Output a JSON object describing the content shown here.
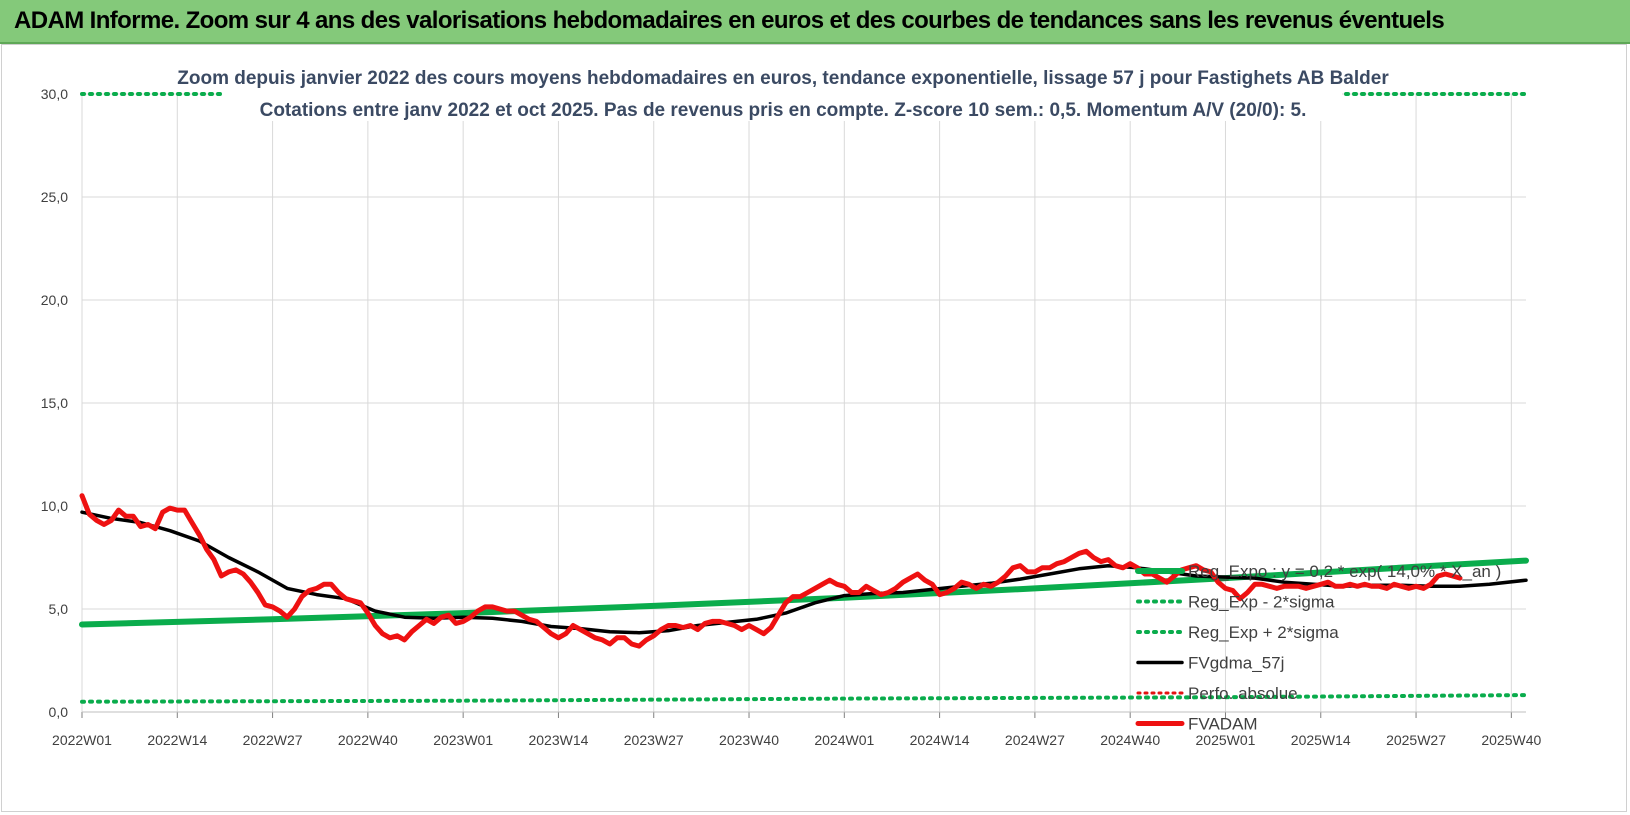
{
  "banner": {
    "title": "ADAM Informe. Zoom sur 4 ans des valorisations hebdomadaires en euros et des courbes de tendances sans les revenus éventuels"
  },
  "colors": {
    "reg_expo": "#0aac4c",
    "fvgdma": "#000000",
    "perfo": "#e31212",
    "fvadam": "#ee1111",
    "grid": "#d9d9d9",
    "title": "#3b4a63",
    "banner": "#84c97a"
  },
  "chart_data": {
    "type": "line",
    "title": "Zoom depuis janvier 2022 des cours moyens hebdomadaires en euros, tendance exponentielle, lissage 57 j pour Fastighets AB Balder",
    "subtitle": "Cotations entre janv 2022 et oct 2025. Pas de revenus pris en compte. Z-score 10 sem.: 0,5. Momentum A/V (20/0): 5.",
    "xlabel": "",
    "ylabel": "",
    "ylim": [
      0,
      30
    ],
    "y_ticks": [
      "0,0",
      "5,0",
      "10,0",
      "15,0",
      "20,0",
      "25,0",
      "30,0"
    ],
    "x_ticks": [
      "2022W01",
      "2022W14",
      "2022W27",
      "2022W40",
      "2023W01",
      "2023W14",
      "2023W27",
      "2023W40",
      "2024W01",
      "2024W14",
      "2024W27",
      "2024W40",
      "2025W01",
      "2025W14",
      "2025W27",
      "2025W40"
    ],
    "x_range_weeks": [
      0,
      197
    ],
    "grid": true,
    "legend_position": "right",
    "series": [
      {
        "name": "Reg_Expo : y = 0,2 * exp( 14,0% * X_an )",
        "style": "solid-thick",
        "points": [
          [
            0,
            4.25
          ],
          [
            26,
            4.5
          ],
          [
            52,
            4.8
          ],
          [
            78,
            5.15
          ],
          [
            104,
            5.55
          ],
          [
            130,
            6.0
          ],
          [
            156,
            6.5
          ],
          [
            182,
            7.05
          ],
          [
            197,
            7.35
          ]
        ]
      },
      {
        "name": "Reg_Exp - 2*sigma",
        "style": "dotted",
        "points": [
          [
            0,
            0.5
          ],
          [
            52,
            0.55
          ],
          [
            104,
            0.65
          ],
          [
            156,
            0.72
          ],
          [
            197,
            0.82
          ]
        ]
      },
      {
        "name": "Reg_Exp + 2*sigma",
        "style": "dotted",
        "points": [
          [
            0,
            30
          ],
          [
            197,
            30
          ]
        ]
      },
      {
        "name": "FVgdma_57j",
        "style": "solid",
        "points": [
          [
            0,
            9.7
          ],
          [
            4,
            9.4
          ],
          [
            8,
            9.2
          ],
          [
            12,
            8.8
          ],
          [
            16,
            8.3
          ],
          [
            20,
            7.5
          ],
          [
            24,
            6.8
          ],
          [
            28,
            6.0
          ],
          [
            32,
            5.7
          ],
          [
            36,
            5.5
          ],
          [
            40,
            4.9
          ],
          [
            44,
            4.6
          ],
          [
            48,
            4.55
          ],
          [
            52,
            4.6
          ],
          [
            56,
            4.55
          ],
          [
            60,
            4.4
          ],
          [
            64,
            4.15
          ],
          [
            68,
            4.05
          ],
          [
            72,
            3.9
          ],
          [
            76,
            3.85
          ],
          [
            80,
            3.95
          ],
          [
            84,
            4.2
          ],
          [
            88,
            4.35
          ],
          [
            92,
            4.5
          ],
          [
            96,
            4.8
          ],
          [
            100,
            5.3
          ],
          [
            104,
            5.65
          ],
          [
            108,
            5.75
          ],
          [
            112,
            5.8
          ],
          [
            116,
            5.95
          ],
          [
            120,
            6.1
          ],
          [
            124,
            6.25
          ],
          [
            128,
            6.45
          ],
          [
            132,
            6.7
          ],
          [
            136,
            6.95
          ],
          [
            140,
            7.1
          ],
          [
            144,
            7.0
          ],
          [
            148,
            6.8
          ],
          [
            152,
            6.6
          ],
          [
            156,
            6.55
          ],
          [
            160,
            6.5
          ],
          [
            164,
            6.3
          ],
          [
            168,
            6.2
          ],
          [
            172,
            6.1
          ],
          [
            176,
            6.15
          ],
          [
            180,
            6.15
          ],
          [
            184,
            6.1
          ],
          [
            188,
            6.1
          ],
          [
            192,
            6.2
          ],
          [
            197,
            6.4
          ]
        ]
      },
      {
        "name": "Perfo. absolue",
        "style": "dotted",
        "points": []
      },
      {
        "name": "FVADAM",
        "style": "solid-thick",
        "points": [
          [
            0,
            10.5
          ],
          [
            1,
            9.6
          ],
          [
            2,
            9.3
          ],
          [
            3,
            9.1
          ],
          [
            4,
            9.3
          ],
          [
            5,
            9.8
          ],
          [
            6,
            9.5
          ],
          [
            7,
            9.5
          ],
          [
            8,
            9.0
          ],
          [
            9,
            9.1
          ],
          [
            10,
            8.9
          ],
          [
            11,
            9.7
          ],
          [
            12,
            9.9
          ],
          [
            13,
            9.8
          ],
          [
            14,
            9.8
          ],
          [
            15,
            9.2
          ],
          [
            16,
            8.6
          ],
          [
            17,
            7.9
          ],
          [
            18,
            7.4
          ],
          [
            19,
            6.6
          ],
          [
            20,
            6.8
          ],
          [
            21,
            6.9
          ],
          [
            22,
            6.7
          ],
          [
            23,
            6.3
          ],
          [
            24,
            5.8
          ],
          [
            25,
            5.2
          ],
          [
            26,
            5.1
          ],
          [
            27,
            4.9
          ],
          [
            28,
            4.6
          ],
          [
            29,
            5.0
          ],
          [
            30,
            5.6
          ],
          [
            31,
            5.9
          ],
          [
            32,
            6.0
          ],
          [
            33,
            6.2
          ],
          [
            34,
            6.2
          ],
          [
            35,
            5.8
          ],
          [
            36,
            5.5
          ],
          [
            37,
            5.4
          ],
          [
            38,
            5.3
          ],
          [
            39,
            4.8
          ],
          [
            40,
            4.2
          ],
          [
            41,
            3.8
          ],
          [
            42,
            3.6
          ],
          [
            43,
            3.7
          ],
          [
            44,
            3.5
          ],
          [
            45,
            3.9
          ],
          [
            46,
            4.2
          ],
          [
            47,
            4.5
          ],
          [
            48,
            4.3
          ],
          [
            49,
            4.6
          ],
          [
            50,
            4.7
          ],
          [
            51,
            4.3
          ],
          [
            52,
            4.4
          ],
          [
            53,
            4.6
          ],
          [
            54,
            4.9
          ],
          [
            55,
            5.1
          ],
          [
            56,
            5.1
          ],
          [
            57,
            5.0
          ],
          [
            58,
            4.9
          ],
          [
            59,
            4.9
          ],
          [
            60,
            4.7
          ],
          [
            61,
            4.5
          ],
          [
            62,
            4.4
          ],
          [
            63,
            4.1
          ],
          [
            64,
            3.8
          ],
          [
            65,
            3.6
          ],
          [
            66,
            3.8
          ],
          [
            67,
            4.2
          ],
          [
            68,
            4.0
          ],
          [
            69,
            3.8
          ],
          [
            70,
            3.6
          ],
          [
            71,
            3.5
          ],
          [
            72,
            3.3
          ],
          [
            73,
            3.6
          ],
          [
            74,
            3.6
          ],
          [
            75,
            3.3
          ],
          [
            76,
            3.2
          ],
          [
            77,
            3.5
          ],
          [
            78,
            3.7
          ],
          [
            79,
            4.0
          ],
          [
            80,
            4.2
          ],
          [
            81,
            4.2
          ],
          [
            82,
            4.1
          ],
          [
            83,
            4.2
          ],
          [
            84,
            4.0
          ],
          [
            85,
            4.3
          ],
          [
            86,
            4.4
          ],
          [
            87,
            4.4
          ],
          [
            88,
            4.3
          ],
          [
            89,
            4.2
          ],
          [
            90,
            4.0
          ],
          [
            91,
            4.2
          ],
          [
            92,
            4.0
          ],
          [
            93,
            3.8
          ],
          [
            94,
            4.1
          ],
          [
            95,
            4.7
          ],
          [
            96,
            5.3
          ],
          [
            97,
            5.6
          ],
          [
            98,
            5.6
          ],
          [
            99,
            5.8
          ],
          [
            100,
            6.0
          ],
          [
            101,
            6.2
          ],
          [
            102,
            6.4
          ],
          [
            103,
            6.2
          ],
          [
            104,
            6.1
          ],
          [
            105,
            5.8
          ],
          [
            106,
            5.8
          ],
          [
            107,
            6.1
          ],
          [
            108,
            5.9
          ],
          [
            109,
            5.7
          ],
          [
            110,
            5.8
          ],
          [
            111,
            6.0
          ],
          [
            112,
            6.3
          ],
          [
            113,
            6.5
          ],
          [
            114,
            6.7
          ],
          [
            115,
            6.4
          ],
          [
            116,
            6.2
          ],
          [
            117,
            5.7
          ],
          [
            118,
            5.8
          ],
          [
            119,
            6.0
          ],
          [
            120,
            6.3
          ],
          [
            121,
            6.2
          ],
          [
            122,
            6.0
          ],
          [
            123,
            6.2
          ],
          [
            124,
            6.1
          ],
          [
            125,
            6.3
          ],
          [
            126,
            6.6
          ],
          [
            127,
            7.0
          ],
          [
            128,
            7.1
          ],
          [
            129,
            6.8
          ],
          [
            130,
            6.8
          ],
          [
            131,
            7.0
          ],
          [
            132,
            7.0
          ],
          [
            133,
            7.2
          ],
          [
            134,
            7.3
          ],
          [
            135,
            7.5
          ],
          [
            136,
            7.7
          ],
          [
            137,
            7.8
          ],
          [
            138,
            7.5
          ],
          [
            139,
            7.3
          ],
          [
            140,
            7.4
          ],
          [
            141,
            7.1
          ],
          [
            142,
            7.0
          ],
          [
            143,
            7.2
          ],
          [
            144,
            7.0
          ],
          [
            145,
            6.7
          ],
          [
            146,
            6.7
          ],
          [
            147,
            6.5
          ],
          [
            148,
            6.3
          ],
          [
            149,
            6.6
          ],
          [
            150,
            6.9
          ],
          [
            151,
            7.0
          ],
          [
            152,
            7.1
          ],
          [
            153,
            6.9
          ],
          [
            154,
            6.8
          ],
          [
            155,
            6.3
          ],
          [
            156,
            6.0
          ],
          [
            157,
            5.9
          ],
          [
            158,
            5.5
          ],
          [
            159,
            5.8
          ],
          [
            160,
            6.2
          ],
          [
            161,
            6.2
          ],
          [
            162,
            6.1
          ],
          [
            163,
            6.0
          ],
          [
            164,
            6.1
          ],
          [
            165,
            6.1
          ],
          [
            166,
            6.1
          ],
          [
            167,
            6.0
          ],
          [
            168,
            6.1
          ],
          [
            169,
            6.2
          ],
          [
            170,
            6.3
          ],
          [
            171,
            6.1
          ],
          [
            172,
            6.1
          ],
          [
            173,
            6.2
          ],
          [
            174,
            6.1
          ],
          [
            175,
            6.2
          ],
          [
            176,
            6.1
          ],
          [
            177,
            6.1
          ],
          [
            178,
            6.0
          ],
          [
            179,
            6.2
          ],
          [
            180,
            6.1
          ],
          [
            181,
            6.0
          ],
          [
            182,
            6.1
          ],
          [
            183,
            6.0
          ],
          [
            184,
            6.2
          ],
          [
            185,
            6.6
          ],
          [
            186,
            6.7
          ],
          [
            187,
            6.6
          ],
          [
            188,
            6.5
          ]
        ]
      }
    ]
  }
}
